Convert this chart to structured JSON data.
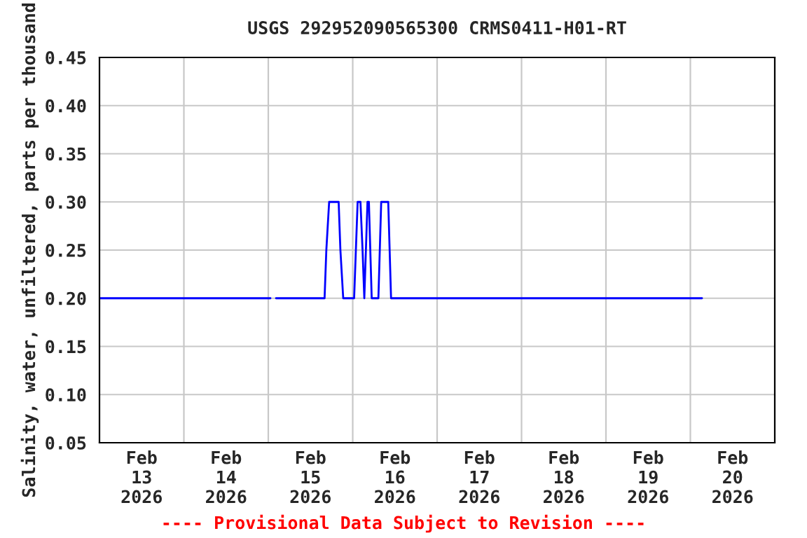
{
  "chart_data": {
    "type": "line",
    "title": "USGS 292952090565300 CRMS0411-H01-RT",
    "ylabel": "Salinity, water, unfiltered, parts per thousand",
    "annotations": [
      "---- Provisional Data Subject to Revision ----"
    ],
    "x": [
      "2026-02-13T00:00",
      "2026-02-15T00:36",
      "2026-02-15T01:24",
      "2026-02-15T02:12",
      "2026-02-15T16:00",
      "2026-02-15T16:30",
      "2026-02-15T17:18",
      "2026-02-15T20:00",
      "2026-02-15T20:30",
      "2026-02-15T21:18",
      "2026-02-16T00:24",
      "2026-02-16T01:24",
      "2026-02-16T02:12",
      "2026-02-16T02:48",
      "2026-02-16T03:18",
      "2026-02-16T04:12",
      "2026-02-16T04:36",
      "2026-02-16T05:24",
      "2026-02-16T07:18",
      "2026-02-16T08:06",
      "2026-02-16T10:06",
      "2026-02-16T10:54",
      "2026-02-20T03:18"
    ],
    "series": [
      {
        "color": "#0000ff",
        "values": [
          0.2,
          0.2,
          null,
          0.2,
          0.2,
          0.25,
          0.3,
          0.3,
          0.25,
          0.2,
          0.2,
          0.3,
          0.3,
          0.25,
          0.2,
          0.3,
          0.3,
          0.2,
          0.2,
          0.3,
          0.3,
          0.2,
          0.2
        ]
      }
    ],
    "xlim": [
      "2026-02-13T00:00",
      "2026-02-21T00:00"
    ],
    "xticks": [
      {
        "value": "2026-02-13T12:00",
        "label": "Feb\n13\n2026"
      },
      {
        "value": "2026-02-14T12:00",
        "label": "Feb\n14\n2026"
      },
      {
        "value": "2026-02-15T12:00",
        "label": "Feb\n15\n2026"
      },
      {
        "value": "2026-02-16T12:00",
        "label": "Feb\n16\n2026"
      },
      {
        "value": "2026-02-17T12:00",
        "label": "Feb\n17\n2026"
      },
      {
        "value": "2026-02-18T12:00",
        "label": "Feb\n18\n2026"
      },
      {
        "value": "2026-02-19T12:00",
        "label": "Feb\n19\n2026"
      },
      {
        "value": "2026-02-20T12:00",
        "label": "Feb\n20\n2026"
      },
      {
        "value": "2026-02-14T00:00",
        "label": null
      },
      {
        "value": "2026-02-15T00:00",
        "label": null
      },
      {
        "value": "2026-02-16T00:00",
        "label": null
      },
      {
        "value": "2026-02-17T00:00",
        "label": null
      },
      {
        "value": "2026-02-18T00:00",
        "label": null
      },
      {
        "value": "2026-02-19T00:00",
        "label": null
      },
      {
        "value": "2026-02-20T00:00",
        "label": null
      }
    ],
    "ylim": [
      0.05,
      0.45
    ],
    "yticks": [
      {
        "value": 0.05,
        "label": "0.05"
      },
      {
        "value": 0.1,
        "label": "0.10"
      },
      {
        "value": 0.15,
        "label": "0.15"
      },
      {
        "value": 0.2,
        "label": "0.20"
      },
      {
        "value": 0.25,
        "label": "0.25"
      },
      {
        "value": 0.3,
        "label": "0.30"
      },
      {
        "value": 0.35,
        "label": "0.35"
      },
      {
        "value": 0.4,
        "label": "0.40"
      },
      {
        "value": 0.45,
        "label": "0.45"
      }
    ],
    "grid": true,
    "line_style": "solid"
  }
}
